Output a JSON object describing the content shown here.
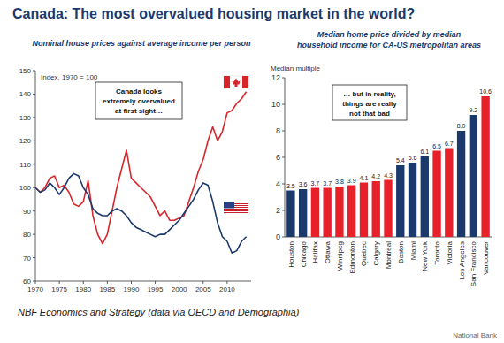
{
  "header": {
    "title": "Canada: The most overvalued housing market in the world?"
  },
  "chart_data": [
    {
      "type": "line",
      "subtitle": "Nominal house prices against average income per person",
      "y_label": "Index, 1970 = 100",
      "annotation": [
        "Canada looks",
        "extremely overvalued",
        "at first sight…"
      ],
      "x": [
        1970,
        1971,
        1972,
        1973,
        1974,
        1975,
        1976,
        1977,
        1978,
        1979,
        1980,
        1981,
        1982,
        1983,
        1984,
        1985,
        1986,
        1987,
        1988,
        1989,
        1990,
        1991,
        1992,
        1993,
        1994,
        1995,
        1996,
        1997,
        1998,
        1999,
        2000,
        2001,
        2002,
        2003,
        2004,
        2005,
        2006,
        2007,
        2008,
        2009,
        2010,
        2011,
        2012,
        2013,
        2014
      ],
      "xlim": [
        1970,
        2015
      ],
      "xticks": [
        1970,
        1975,
        1980,
        1985,
        1990,
        1995,
        2000,
        2005,
        2010
      ],
      "ylim": [
        60,
        150
      ],
      "yticks": [
        60,
        70,
        80,
        90,
        100,
        110,
        120,
        130,
        140,
        150
      ],
      "grid": false,
      "series": [
        {
          "color": "#d7262b",
          "values": [
            100,
            98,
            100,
            104,
            105,
            100,
            101,
            98,
            93,
            92,
            94,
            103,
            88,
            80,
            76,
            80,
            90,
            100,
            108,
            116,
            104,
            102,
            100,
            98,
            96,
            92,
            88,
            90,
            86,
            86,
            87,
            88,
            94,
            100,
            107,
            112,
            120,
            126,
            120,
            124,
            132,
            133,
            136,
            138,
            141
          ]
        },
        {
          "color": "#1b3a6b",
          "values": [
            100,
            98,
            99,
            102,
            100,
            97,
            100,
            104,
            106,
            105,
            100,
            97,
            91,
            89,
            88,
            88,
            90,
            91,
            90,
            88,
            85,
            83,
            82,
            81,
            80,
            79,
            80,
            80,
            82,
            84,
            86,
            89,
            92,
            95,
            99,
            102,
            101,
            94,
            85,
            79,
            77,
            72,
            73,
            77,
            79
          ]
        }
      ]
    },
    {
      "type": "bar",
      "subtitle": [
        "Median home price divided by median",
        "household income for CA-US metropolitan areas"
      ],
      "y_label": "Median multiple",
      "annotation": [
        "… but in reality,",
        "things are really",
        "not that bad"
      ],
      "categories": [
        "Houston",
        "Chicago",
        "Halifax",
        "Ottawa",
        "Winnipeg",
        "Edmonton",
        "Quebec",
        "Calgary",
        "Montreal",
        "Boston",
        "Miami",
        "New York",
        "Toronto",
        "Victoria",
        "Los Angeles",
        "San Francisco",
        "Vancouver"
      ],
      "values": [
        3.5,
        3.6,
        3.7,
        3.7,
        3.8,
        3.9,
        4.1,
        4.2,
        4.3,
        5.4,
        5.6,
        6.1,
        6.5,
        6.7,
        8.0,
        9.2,
        10.6
      ],
      "value_labels": [
        "3.5",
        "3.6",
        "3.7",
        "3.7",
        "3.8",
        "3.9",
        "4.1",
        "4.2",
        "4.3",
        "5.4",
        "5.6",
        "6.1",
        "6.5",
        "6.7",
        "8.0",
        "9.2",
        "10.6"
      ],
      "colors": [
        "#1b3a6b",
        "#1b3a6b",
        "#e8202a",
        "#e8202a",
        "#e8202a",
        "#e8202a",
        "#e8202a",
        "#e8202a",
        "#e8202a",
        "#1b3a6b",
        "#1b3a6b",
        "#1b3a6b",
        "#e8202a",
        "#e8202a",
        "#1b3a6b",
        "#1b3a6b",
        "#e8202a"
      ],
      "ylim": [
        0,
        12
      ],
      "yticks": [
        0,
        2,
        4,
        6,
        8,
        10,
        12
      ],
      "grid": false,
      "data_labels": true
    }
  ],
  "footer": {
    "source": "NBF Economics and Strategy (data via OECD and Demographia)",
    "credit": "National Bank"
  }
}
